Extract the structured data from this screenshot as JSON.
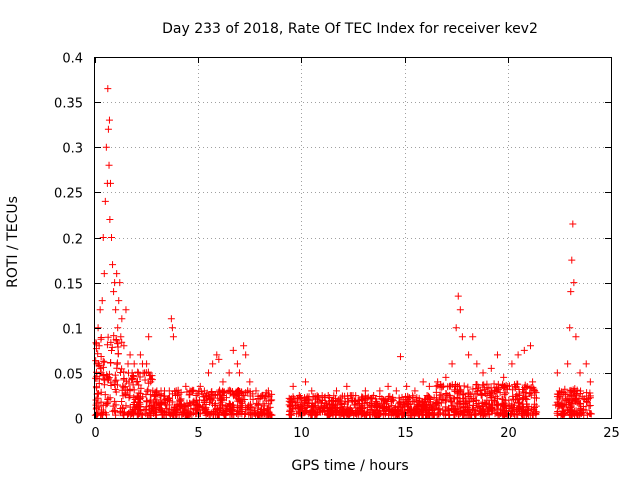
{
  "chart_data": {
    "type": "scatter",
    "title": "Day 233 of 2018, Rate Of TEC Index for receiver kev2",
    "xlabel": "GPS time / hours",
    "ylabel": "ROTI / TECUs",
    "xlim": [
      0,
      25
    ],
    "ylim": [
      0,
      0.4
    ],
    "xticks": [
      0,
      5,
      10,
      15,
      20,
      25
    ],
    "xtick_labels": [
      "0",
      "5",
      "10",
      "15",
      "20",
      "25"
    ],
    "yticks": [
      0,
      0.05,
      0.1,
      0.15,
      0.2,
      0.25,
      0.3,
      0.35,
      0.4
    ],
    "ytick_labels": [
      "0",
      "0.05",
      "0.1",
      "0.15",
      "0.2",
      "0.25",
      "0.3",
      "0.35",
      "0.4"
    ],
    "grid": true,
    "marker": "plus",
    "color": "#ff0000",
    "series": [
      {
        "name": "ROTI",
        "points": [
          [
            0.05,
            0.02
          ],
          [
            0.1,
            0.06
          ],
          [
            0.15,
            0.1
          ],
          [
            0.2,
            0.08
          ],
          [
            0.25,
            0.12
          ],
          [
            0.3,
            0.05
          ],
          [
            0.35,
            0.13
          ],
          [
            0.4,
            0.2
          ],
          [
            0.45,
            0.16
          ],
          [
            0.5,
            0.24
          ],
          [
            0.55,
            0.3
          ],
          [
            0.6,
            0.26
          ],
          [
            0.62,
            0.365
          ],
          [
            0.65,
            0.32
          ],
          [
            0.68,
            0.28
          ],
          [
            0.7,
            0.33
          ],
          [
            0.72,
            0.22
          ],
          [
            0.75,
            0.26
          ],
          [
            0.8,
            0.2
          ],
          [
            0.85,
            0.17
          ],
          [
            0.9,
            0.14
          ],
          [
            0.95,
            0.15
          ],
          [
            1.0,
            0.12
          ],
          [
            1.05,
            0.16
          ],
          [
            1.1,
            0.1
          ],
          [
            1.15,
            0.13
          ],
          [
            1.2,
            0.15
          ],
          [
            1.25,
            0.09
          ],
          [
            1.3,
            0.11
          ],
          [
            1.4,
            0.08
          ],
          [
            1.5,
            0.12
          ],
          [
            1.6,
            0.06
          ],
          [
            1.7,
            0.07
          ],
          [
            1.8,
            0.05
          ],
          [
            1.9,
            0.06
          ],
          [
            2.0,
            0.04
          ],
          [
            2.1,
            0.05
          ],
          [
            2.2,
            0.07
          ],
          [
            2.3,
            0.06
          ],
          [
            2.4,
            0.05
          ],
          [
            2.5,
            0.06
          ],
          [
            2.6,
            0.09
          ],
          [
            2.7,
            0.04
          ],
          [
            2.8,
            0.03
          ],
          [
            3.0,
            0.025
          ],
          [
            3.2,
            0.03
          ],
          [
            3.4,
            0.02
          ],
          [
            3.6,
            0.03
          ],
          [
            3.7,
            0.11
          ],
          [
            3.75,
            0.1
          ],
          [
            3.8,
            0.09
          ],
          [
            3.9,
            0.025
          ],
          [
            4.1,
            0.02
          ],
          [
            4.4,
            0.035
          ],
          [
            4.6,
            0.03
          ],
          [
            4.9,
            0.025
          ],
          [
            5.1,
            0.035
          ],
          [
            5.3,
            0.03
          ],
          [
            5.5,
            0.05
          ],
          [
            5.7,
            0.06
          ],
          [
            5.9,
            0.07
          ],
          [
            6.0,
            0.065
          ],
          [
            6.2,
            0.04
          ],
          [
            6.5,
            0.05
          ],
          [
            6.7,
            0.075
          ],
          [
            6.9,
            0.06
          ],
          [
            7.0,
            0.05
          ],
          [
            7.2,
            0.08
          ],
          [
            7.3,
            0.07
          ],
          [
            7.5,
            0.04
          ],
          [
            7.8,
            0.03
          ],
          [
            8.1,
            0.025
          ],
          [
            8.4,
            0.03
          ],
          [
            9.6,
            0.035
          ],
          [
            9.9,
            0.025
          ],
          [
            10.2,
            0.04
          ],
          [
            10.5,
            0.03
          ],
          [
            10.9,
            0.02
          ],
          [
            11.3,
            0.025
          ],
          [
            11.7,
            0.03
          ],
          [
            12.2,
            0.035
          ],
          [
            12.5,
            0.025
          ],
          [
            12.8,
            0.02
          ],
          [
            13.1,
            0.03
          ],
          [
            13.5,
            0.025
          ],
          [
            13.8,
            0.03
          ],
          [
            14.2,
            0.035
          ],
          [
            14.6,
            0.03
          ],
          [
            14.8,
            0.068
          ],
          [
            15.1,
            0.035
          ],
          [
            15.5,
            0.03
          ],
          [
            15.9,
            0.04
          ],
          [
            16.2,
            0.035
          ],
          [
            16.6,
            0.04
          ],
          [
            17.0,
            0.045
          ],
          [
            17.3,
            0.06
          ],
          [
            17.5,
            0.1
          ],
          [
            17.6,
            0.135
          ],
          [
            17.7,
            0.12
          ],
          [
            17.8,
            0.09
          ],
          [
            18.1,
            0.07
          ],
          [
            18.3,
            0.09
          ],
          [
            18.5,
            0.06
          ],
          [
            18.8,
            0.05
          ],
          [
            19.2,
            0.055
          ],
          [
            19.5,
            0.07
          ],
          [
            19.8,
            0.045
          ],
          [
            20.0,
            0.035
          ],
          [
            20.2,
            0.06
          ],
          [
            20.5,
            0.07
          ],
          [
            20.8,
            0.075
          ],
          [
            21.1,
            0.08
          ],
          [
            21.2,
            0.04
          ],
          [
            22.4,
            0.05
          ],
          [
            22.5,
            0.03
          ],
          [
            22.9,
            0.06
          ],
          [
            23.0,
            0.1
          ],
          [
            23.05,
            0.14
          ],
          [
            23.1,
            0.175
          ],
          [
            23.15,
            0.215
          ],
          [
            23.2,
            0.15
          ],
          [
            23.3,
            0.09
          ],
          [
            23.5,
            0.05
          ],
          [
            23.8,
            0.06
          ],
          [
            24.0,
            0.04
          ]
        ]
      }
    ]
  }
}
